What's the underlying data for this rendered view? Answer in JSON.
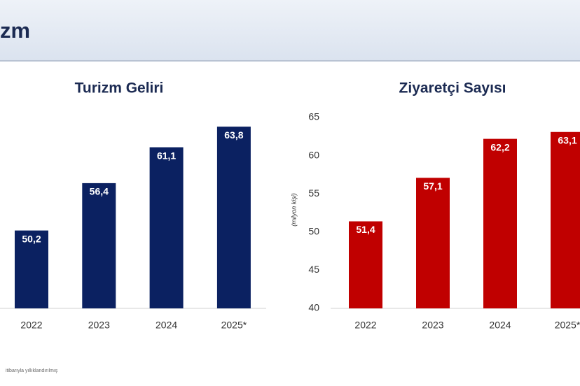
{
  "header": {
    "title": "zm"
  },
  "footnote": "itibarıyla yıllıklandırılmış",
  "chart_data": [
    {
      "type": "bar",
      "title": "Turizm Geliri",
      "categories": [
        "2022",
        "2023",
        "2024",
        "2025*"
      ],
      "values": [
        50.2,
        56.4,
        61.1,
        63.8
      ],
      "value_labels": [
        "50,2",
        "56,4",
        "61,1",
        "63,8"
      ],
      "color": "#0b2161",
      "ylim": [
        40,
        65
      ]
    },
    {
      "type": "bar",
      "title": "Ziyaretçi Sayısı",
      "y_label": "(milyon kişi)",
      "categories": [
        "2022",
        "2023",
        "2024",
        "2025*"
      ],
      "values": [
        51.4,
        57.1,
        62.2,
        63.1
      ],
      "value_labels": [
        "51,4",
        "57,1",
        "62,2",
        "63,1"
      ],
      "color": "#c00000",
      "ylim": [
        40,
        65
      ],
      "yticks": [
        40,
        45,
        50,
        55,
        60,
        65
      ]
    }
  ]
}
